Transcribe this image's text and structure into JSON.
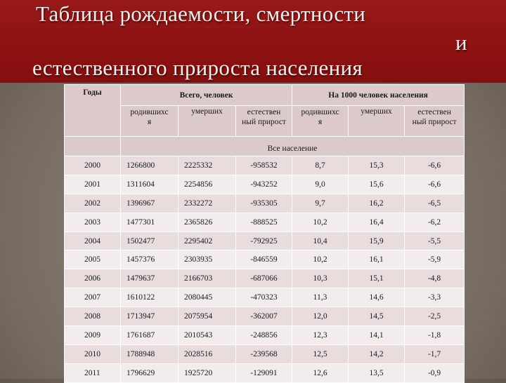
{
  "title": {
    "line1": "Таблица рождаемости, смертности",
    "line2": "и",
    "line3": "естественного прироста населения"
  },
  "table": {
    "header": {
      "years": "Годы",
      "total_group": "Всего, человек",
      "per1000_group": "На 1000 человек населения",
      "born_part1": "родившихс",
      "born_part2": "я",
      "died": "умерших",
      "natural_part1": "естествен",
      "natural_part2": "ный прирост",
      "born2_part1": "родившихс",
      "born2_part2": "я",
      "died2": "умерших",
      "natural2_part1": "естествен",
      "natural2_part2": "ный прирост",
      "all_population": "Все население"
    },
    "rows": [
      {
        "year": "2000",
        "born": "1266800",
        "died": "2225332",
        "growth": "-958532",
        "born_rate": "8,7",
        "died_rate": "15,3",
        "growth_rate": "-6,6"
      },
      {
        "year": "2001",
        "born": "1311604",
        "died": "2254856",
        "growth": "-943252",
        "born_rate": "9,0",
        "died_rate": "15,6",
        "growth_rate": "-6,6"
      },
      {
        "year": "2002",
        "born": "1396967",
        "died": "2332272",
        "growth": "-935305",
        "born_rate": "9,7",
        "died_rate": "16,2",
        "growth_rate": "-6,5"
      },
      {
        "year": "2003",
        "born": "1477301",
        "died": "2365826",
        "growth": "-888525",
        "born_rate": "10,2",
        "died_rate": "16,4",
        "growth_rate": "-6,2"
      },
      {
        "year": "2004",
        "born": "1502477",
        "died": "2295402",
        "growth": "-792925",
        "born_rate": "10,4",
        "died_rate": "15,9",
        "growth_rate": "-5,5"
      },
      {
        "year": "2005",
        "born": "1457376",
        "died": "2303935",
        "growth": "-846559",
        "born_rate": "10,2",
        "died_rate": "16,1",
        "growth_rate": "-5,9"
      },
      {
        "year": "2006",
        "born": "1479637",
        "died": "2166703",
        "growth": "-687066",
        "born_rate": "10,3",
        "died_rate": "15,1",
        "growth_rate": "-4,8"
      },
      {
        "year": "2007",
        "born": "1610122",
        "died": "2080445",
        "growth": "-470323",
        "born_rate": "11,3",
        "died_rate": "14,6",
        "growth_rate": "-3,3"
      },
      {
        "year": "2008",
        "born": "1713947",
        "died": "2075954",
        "growth": "-362007",
        "born_rate": "12,0",
        "died_rate": "14,5",
        "growth_rate": "-2,5"
      },
      {
        "year": "2009",
        "born": "1761687",
        "died": "2010543",
        "growth": "-248856",
        "born_rate": "12,3",
        "died_rate": "14,1",
        "growth_rate": "-1,8"
      },
      {
        "year": "2010",
        "born": "1788948",
        "died": "2028516",
        "growth": "-239568",
        "born_rate": "12,5",
        "died_rate": "14,2",
        "growth_rate": "-1,7"
      },
      {
        "year": "2011",
        "born": "1796629",
        "died": "1925720",
        "growth": "-129091",
        "born_rate": "12,6",
        "died_rate": "13,5",
        "growth_rate": "-0,9"
      }
    ]
  },
  "colors": {
    "title_band": "#8c1111",
    "header_bg": "#dcc9c9",
    "row_odd": "#e8dcdc",
    "row_even": "#f2ecec",
    "background": "#7d7266"
  }
}
